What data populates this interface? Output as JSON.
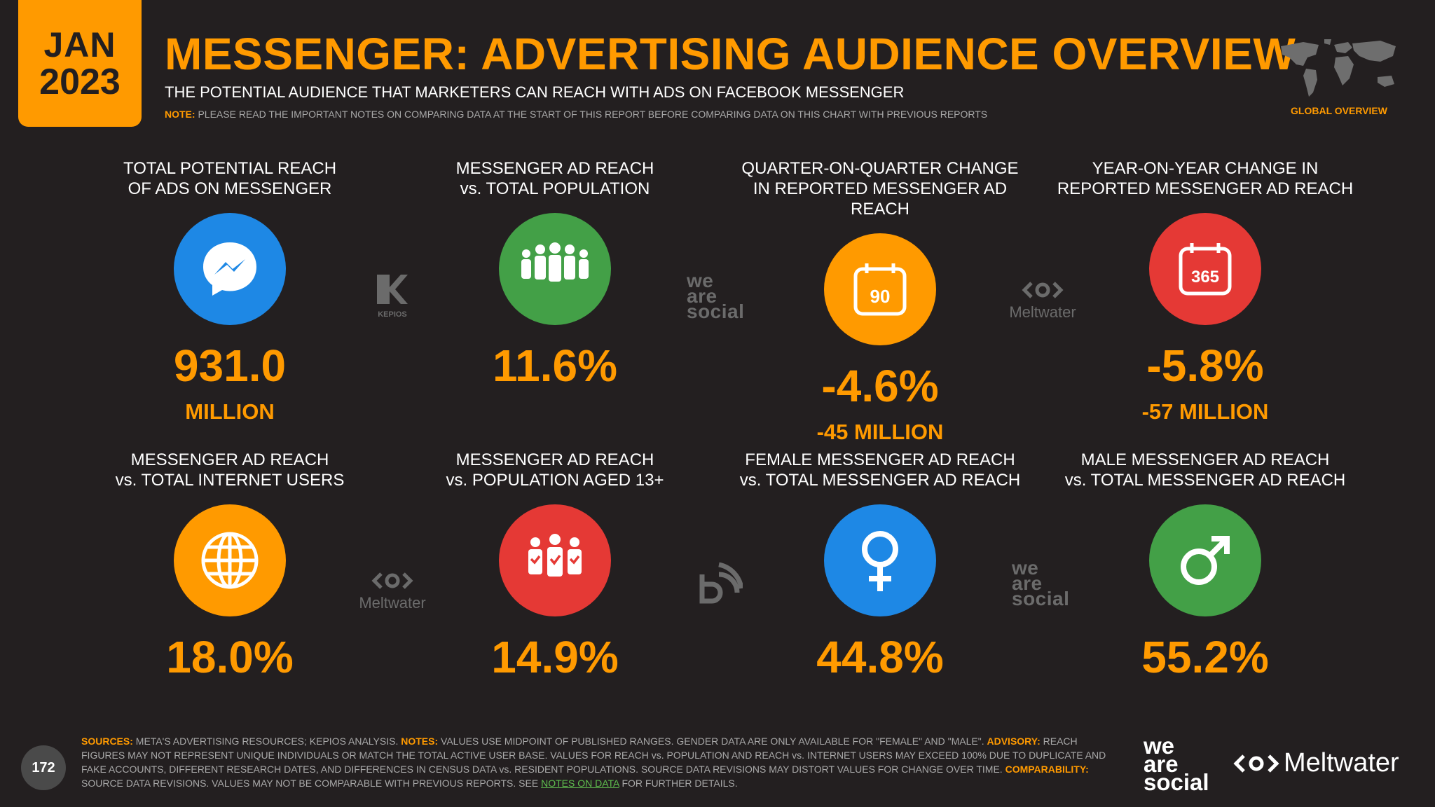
{
  "header": {
    "month": "JAN",
    "year": "2023",
    "title": "MESSENGER: ADVERTISING AUDIENCE OVERVIEW",
    "subtitle": "THE POTENTIAL AUDIENCE THAT MARKETERS CAN REACH WITH ADS ON FACEBOOK MESSENGER",
    "note_label": "NOTE:",
    "note_text": "PLEASE READ THE IMPORTANT NOTES ON COMPARING DATA AT THE START OF THIS REPORT BEFORE COMPARING DATA ON THIS CHART WITH PREVIOUS REPORTS",
    "badge": "GLOBAL OVERVIEW"
  },
  "stats": [
    {
      "label1": "TOTAL POTENTIAL REACH",
      "label2": "OF ADS ON MESSENGER",
      "value": "931.0",
      "sub": "MILLION",
      "icon": "messenger-icon",
      "color": "#1e88e5"
    },
    {
      "label1": "MESSENGER AD REACH",
      "label2": "vs. TOTAL POPULATION",
      "value": "11.6%",
      "sub": "",
      "icon": "people-icon",
      "color": "#43a047"
    },
    {
      "label1": "QUARTER-ON-QUARTER CHANGE",
      "label2": "IN REPORTED MESSENGER AD REACH",
      "value": "-4.6%",
      "sub": "-45 MILLION",
      "icon": "calendar-90-icon",
      "icon_text": "90",
      "color": "#ff9a00"
    },
    {
      "label1": "YEAR-ON-YEAR CHANGE IN",
      "label2": "REPORTED MESSENGER AD REACH",
      "value": "-5.8%",
      "sub": "-57 MILLION",
      "icon": "calendar-365-icon",
      "icon_text": "365",
      "color": "#e53935"
    },
    {
      "label1": "MESSENGER AD REACH",
      "label2": "vs. TOTAL INTERNET USERS",
      "value": "18.0%",
      "sub": "",
      "icon": "globe-icon",
      "color": "#ff9a00"
    },
    {
      "label1": "MESSENGER AD REACH",
      "label2": "vs. POPULATION AGED 13+",
      "value": "14.9%",
      "sub": "",
      "icon": "people-check-icon",
      "color": "#e53935"
    },
    {
      "label1": "FEMALE MESSENGER AD REACH",
      "label2": "vs. TOTAL MESSENGER AD REACH",
      "value": "44.8%",
      "sub": "",
      "icon": "female-icon",
      "color": "#1e88e5"
    },
    {
      "label1": "MALE MESSENGER AD REACH",
      "label2": "vs. TOTAL MESSENGER AD REACH",
      "value": "55.2%",
      "sub": "",
      "icon": "male-icon",
      "color": "#43a047"
    }
  ],
  "watermarks": {
    "kepios": "KEPIOS",
    "was1": "we",
    "was2": "are",
    "was3": "social",
    "meltwater": "Meltwater"
  },
  "footer": {
    "page": "172",
    "sources_label": "SOURCES:",
    "sources": "META'S ADVERTISING RESOURCES; KEPIOS ANALYSIS.",
    "notes_label": "NOTES:",
    "notes": "VALUES USE MIDPOINT OF PUBLISHED RANGES. GENDER DATA ARE ONLY AVAILABLE FOR \"FEMALE\" AND \"MALE\".",
    "advisory_label": "ADVISORY:",
    "advisory": "REACH FIGURES MAY NOT REPRESENT UNIQUE INDIVIDUALS OR MATCH THE TOTAL ACTIVE USER BASE. VALUES FOR REACH vs. POPULATION AND REACH vs. INTERNET USERS MAY EXCEED 100% DUE TO DUPLICATE AND FAKE ACCOUNTS, DIFFERENT RESEARCH DATES, AND DIFFERENCES IN CENSUS DATA vs. RESIDENT POPULATIONS. SOURCE DATA REVISIONS MAY DISTORT VALUES FOR CHANGE OVER TIME.",
    "comparability_label": "COMPARABILITY:",
    "comparability": "SOURCE DATA REVISIONS. VALUES MAY NOT BE COMPARABLE WITH PREVIOUS REPORTS. SEE",
    "link": "NOTES ON DATA",
    "tail": "FOR FURTHER DETAILS."
  },
  "brands": {
    "was1": "we",
    "was2": "are",
    "was3": "social",
    "meltwater": "Meltwater"
  }
}
